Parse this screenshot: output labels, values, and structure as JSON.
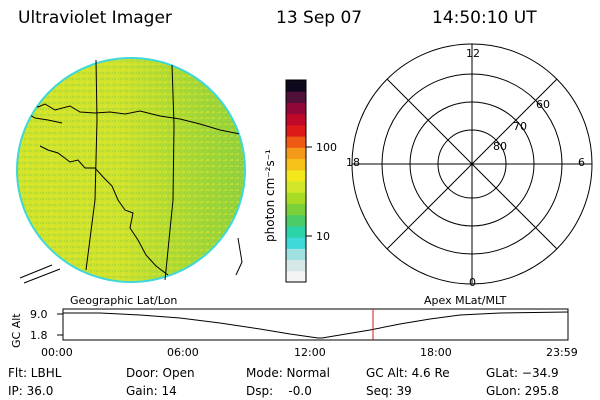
{
  "header": {
    "title": "Ultraviolet Imager",
    "date": "13 Sep 07",
    "time": "14:50:10 UT"
  },
  "colorbar": {
    "unit_label": "photon cm⁻²s⁻¹",
    "tick_labels": [
      "100",
      "10"
    ],
    "colors": [
      "#f4f4f4",
      "#d6e8e8",
      "#9fe0e0",
      "#3ed8d8",
      "#2bd3a8",
      "#4ccc66",
      "#7ad13a",
      "#a8dc24",
      "#d2e62a",
      "#f2e81c",
      "#f6c21a",
      "#f59a18",
      "#ef5a14",
      "#de1a18",
      "#c00828",
      "#900838",
      "#501038",
      "#10081c"
    ]
  },
  "polar_plot": {
    "mlt_labels": [
      "12",
      "18",
      "6",
      "0"
    ],
    "lat_labels": [
      "60",
      "70",
      "80"
    ]
  },
  "timeline": {
    "left_label": "Geographic Lat/Lon",
    "right_label": "Apex MLat/MLT",
    "y_axis_label": "GC Alt",
    "y_ticks": [
      "9.0",
      "1.8"
    ],
    "x_ticks": [
      "00:00",
      "06:00",
      "12:00",
      "18:00",
      "23:59"
    ],
    "current_time_marker": "14:50"
  },
  "info": {
    "filter": "Flt: LBHL",
    "ip": "IP: 36.0",
    "door": "Door: Open",
    "gain": "Gain: 14",
    "mode": "Mode: Normal",
    "dsp": "Dsp:    -0.0",
    "gc_alt": "GC Alt: 4.6 Re",
    "seq": "Seq: 39",
    "glat": "GLat: −34.9",
    "glon": "GLon: 295.8"
  }
}
